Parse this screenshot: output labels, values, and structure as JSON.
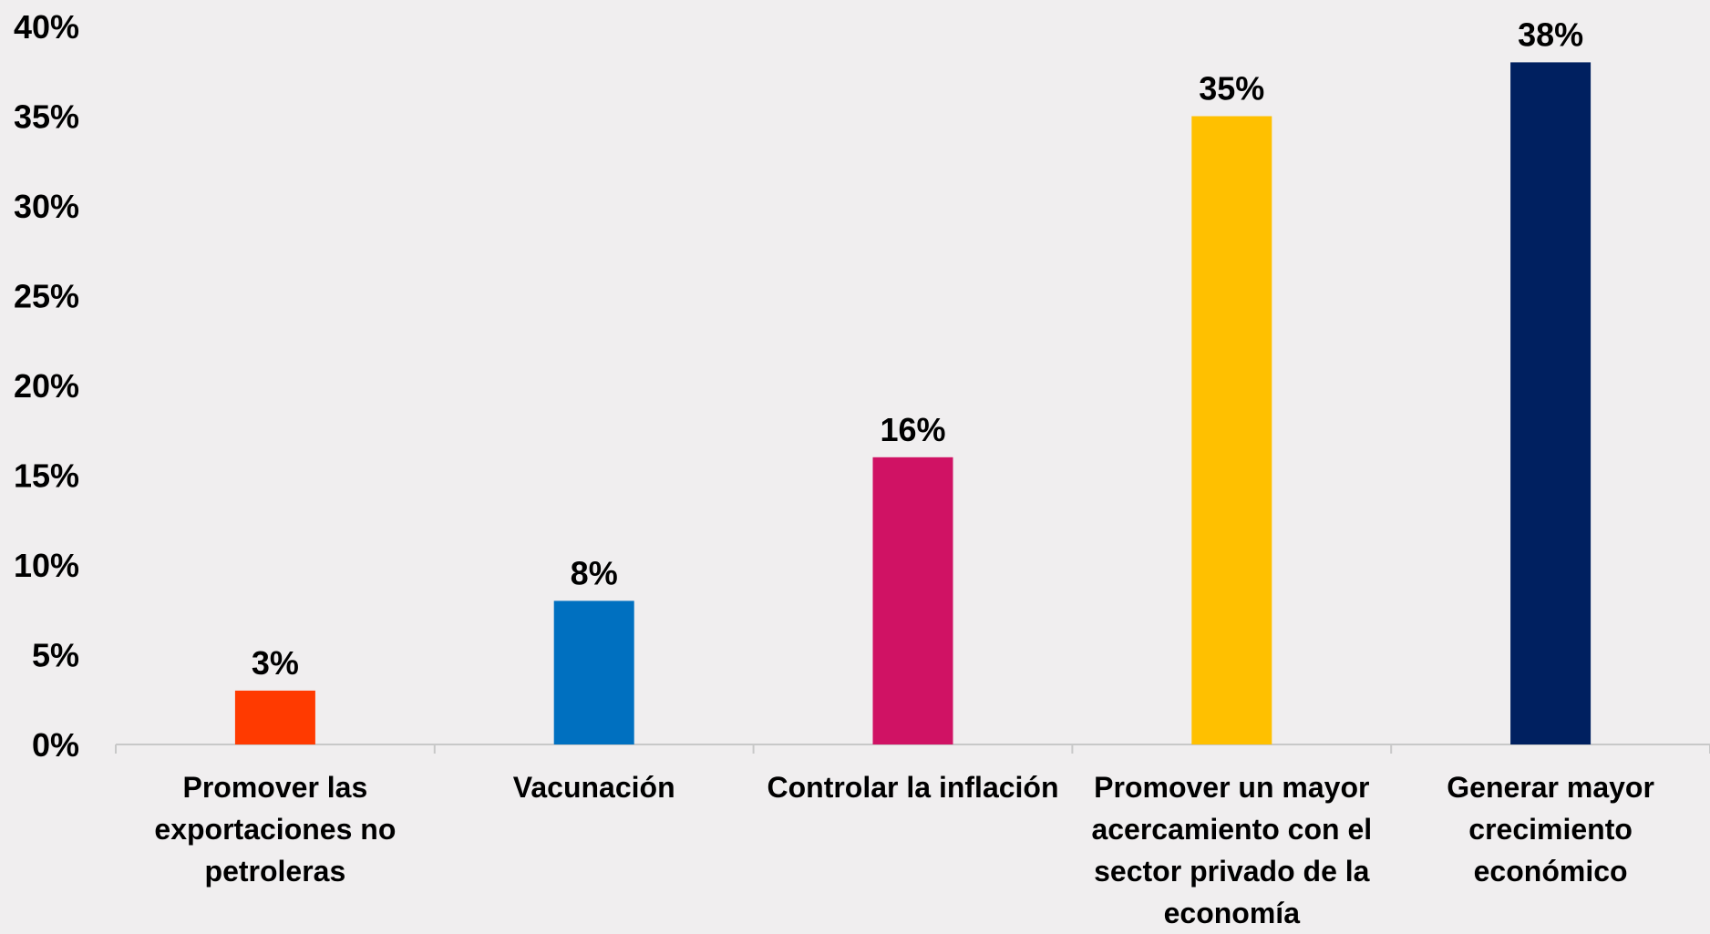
{
  "chart_data": {
    "type": "bar",
    "categories": [
      "Promover las exportaciones no petroleras",
      "Vacunación",
      "Controlar la inflación",
      "Promover un mayor acercamiento con el sector privado de la economía",
      "Generar mayor crecimiento económico"
    ],
    "values": [
      3,
      8,
      16,
      35,
      38
    ],
    "value_labels": [
      "3%",
      "8%",
      "16%",
      "35%",
      "38%"
    ],
    "bar_colors": [
      "#ff3a00",
      "#0070c0",
      "#d01264",
      "#ffc000",
      "#002060"
    ],
    "yticks": [
      0,
      5,
      10,
      15,
      20,
      25,
      30,
      35,
      40
    ],
    "ytick_labels": [
      "0%",
      "5%",
      "10%",
      "15%",
      "20%",
      "25%",
      "30%",
      "35%",
      "40%"
    ],
    "ylim": [
      0,
      40
    ],
    "grid": false,
    "legend": "none",
    "title": "",
    "xlabel": "",
    "ylabel": ""
  }
}
